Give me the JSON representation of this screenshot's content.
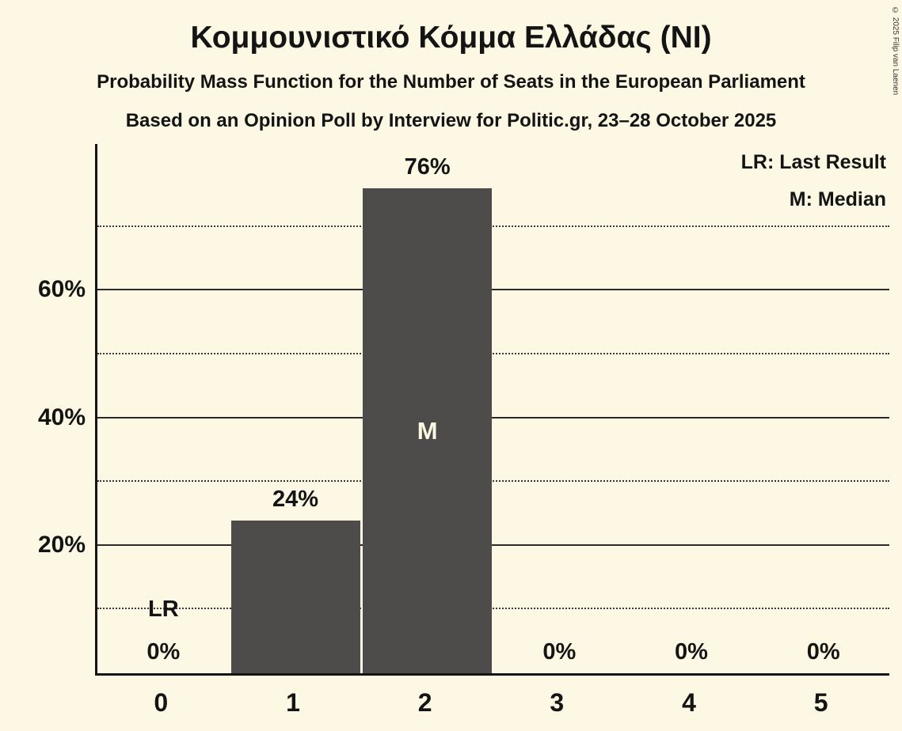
{
  "title": "Κομμουνιστικό Κόμμα Ελλάδας (NI)",
  "subtitle1": "Probability Mass Function for the Number of Seats in the European Parliament",
  "subtitle2": "Based on an Opinion Poll by Interview for Politic.gr, 23–28 October 2025",
  "copyright": "© 2025 Filip van Laenen",
  "legend": {
    "lr": "LR: Last Result",
    "m": "M: Median"
  },
  "colors": {
    "background": "#fcf8e3",
    "bar": "#4d4c4a",
    "text": "#141414",
    "bar_inner_label": "#fcf8e3"
  },
  "chart_data": {
    "type": "bar",
    "categories": [
      "0",
      "1",
      "2",
      "3",
      "4",
      "5"
    ],
    "values": [
      0,
      24,
      76,
      0,
      0,
      0
    ],
    "value_labels": [
      "0%",
      "24%",
      "76%",
      "0%",
      "0%",
      "0%"
    ],
    "title": "Κομμουνιστικό Κόμμα Ελλάδας (NI)",
    "xlabel": "",
    "ylabel": "",
    "ylim": [
      0,
      83
    ],
    "yticks": [
      20,
      40,
      60
    ],
    "ytick_labels": [
      "20%",
      "40%",
      "60%"
    ],
    "solid_gridlines": [
      20,
      40,
      60
    ],
    "dotted_gridlines": [
      10,
      30,
      50,
      70
    ],
    "median_category": "2",
    "median_label": "M",
    "last_result_category": "0",
    "last_result_label": "LR",
    "legend_position": "top-right",
    "grid": true
  }
}
